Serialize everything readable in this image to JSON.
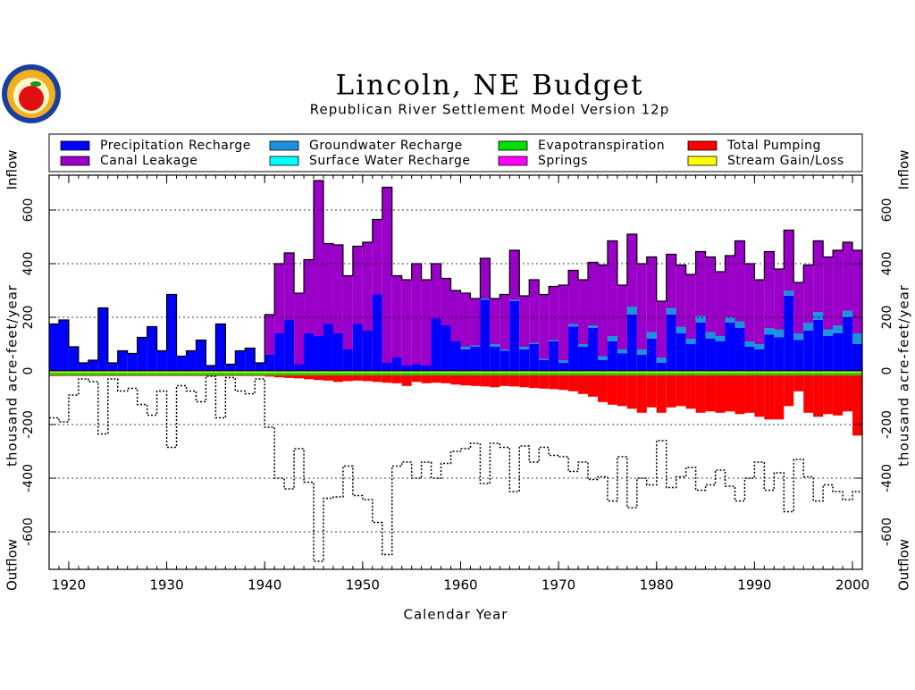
{
  "chart_data": {
    "type": "bar",
    "title": "Lincoln, NE Budget",
    "subtitle": "Republican River Settlement Model Version 12p",
    "xlabel": "Calendar Year",
    "side_labels": {
      "top": "Inflow",
      "middle": "thousand acre-feet/year",
      "bottom": "Outflow"
    },
    "xlim": [
      1918,
      2001
    ],
    "xticks": [
      1920,
      1930,
      1940,
      1950,
      1960,
      1970,
      1980,
      1990,
      2000
    ],
    "ylim": [
      -740,
      730
    ],
    "yticks": [
      -600,
      -400,
      -200,
      0,
      200,
      400,
      600
    ],
    "grid": true,
    "x": [
      1918,
      1919,
      1920,
      1921,
      1922,
      1923,
      1924,
      1925,
      1926,
      1927,
      1928,
      1929,
      1930,
      1931,
      1932,
      1933,
      1934,
      1935,
      1936,
      1937,
      1938,
      1939,
      1940,
      1941,
      1942,
      1943,
      1944,
      1945,
      1946,
      1947,
      1948,
      1949,
      1950,
      1951,
      1952,
      1953,
      1954,
      1955,
      1956,
      1957,
      1958,
      1959,
      1960,
      1961,
      1962,
      1963,
      1964,
      1965,
      1966,
      1967,
      1968,
      1969,
      1970,
      1971,
      1972,
      1973,
      1974,
      1975,
      1976,
      1977,
      1978,
      1979,
      1980,
      1981,
      1982,
      1983,
      1984,
      1985,
      1986,
      1987,
      1988,
      1989,
      1990,
      1991,
      1992,
      1993,
      1994,
      1995,
      1996,
      1997,
      1998,
      1999,
      2000
    ],
    "series": [
      {
        "name": "Precipitation Recharge",
        "color": "#0000ff",
        "values": [
          175,
          190,
          90,
          30,
          40,
          235,
          30,
          75,
          65,
          125,
          165,
          75,
          285,
          55,
          75,
          115,
          20,
          175,
          25,
          75,
          85,
          30,
          60,
          140,
          190,
          25,
          140,
          130,
          175,
          140,
          80,
          175,
          150,
          285,
          30,
          50,
          20,
          25,
          20,
          195,
          170,
          110,
          80,
          90,
          265,
          90,
          75,
          260,
          80,
          100,
          40,
          110,
          30,
          165,
          90,
          160,
          40,
          110,
          65,
          210,
          60,
          120,
          30,
          210,
          140,
          100,
          180,
          120,
          110,
          180,
          160,
          90,
          80,
          135,
          125,
          280,
          115,
          150,
          190,
          130,
          140,
          200,
          100
        ]
      },
      {
        "name": "Groundwater Recharge",
        "color": "#1e90e0",
        "values": [
          0,
          0,
          0,
          0,
          0,
          0,
          0,
          0,
          0,
          0,
          0,
          0,
          0,
          0,
          0,
          0,
          0,
          0,
          0,
          0,
          0,
          0,
          0,
          0,
          0,
          0,
          0,
          0,
          0,
          0,
          0,
          0,
          0,
          0,
          0,
          0,
          0,
          0,
          0,
          0,
          0,
          0,
          10,
          5,
          5,
          10,
          5,
          5,
          10,
          5,
          5,
          5,
          10,
          10,
          10,
          10,
          15,
          20,
          15,
          30,
          20,
          25,
          20,
          25,
          25,
          20,
          25,
          25,
          20,
          20,
          25,
          20,
          20,
          25,
          30,
          20,
          25,
          30,
          30,
          25,
          30,
          25,
          40
        ]
      },
      {
        "name": "Evapotranspiration",
        "color": "#00e000",
        "values": [
          -10,
          -10,
          -10,
          -10,
          -10,
          -10,
          -10,
          -10,
          -10,
          -10,
          -10,
          -10,
          -10,
          -10,
          -10,
          -10,
          -10,
          -10,
          -10,
          -10,
          -10,
          -10,
          -10,
          -10,
          -10,
          -10,
          -10,
          -10,
          -10,
          -10,
          -10,
          -10,
          -10,
          -10,
          -10,
          -10,
          -10,
          -10,
          -10,
          -10,
          -10,
          -10,
          -10,
          -10,
          -10,
          -10,
          -10,
          -10,
          -10,
          -10,
          -10,
          -10,
          -10,
          -10,
          -10,
          -10,
          -10,
          -10,
          -10,
          -10,
          -10,
          -10,
          -10,
          -10,
          -10,
          -10,
          -10,
          -10,
          -10,
          -10,
          -10,
          -10,
          -10,
          -10,
          -10,
          -10,
          -10,
          -10,
          -10,
          -10,
          -10,
          -10,
          -10
        ]
      },
      {
        "name": "Total Pumping",
        "color": "#ff0000",
        "values": [
          -3,
          -3,
          -3,
          -3,
          -3,
          -3,
          -3,
          -3,
          -3,
          -3,
          -3,
          -3,
          -3,
          -3,
          -3,
          -3,
          -3,
          -3,
          -3,
          -3,
          -3,
          -3,
          -5,
          -8,
          -10,
          -12,
          -15,
          -18,
          -20,
          -25,
          -22,
          -20,
          -22,
          -25,
          -28,
          -30,
          -40,
          -25,
          -30,
          -28,
          -30,
          -35,
          -38,
          -40,
          -42,
          -45,
          -40,
          -42,
          -45,
          -48,
          -50,
          -52,
          -55,
          -60,
          -70,
          -80,
          -100,
          -110,
          -115,
          -125,
          -140,
          -120,
          -140,
          -120,
          -115,
          -125,
          -140,
          -135,
          -140,
          -135,
          -145,
          -140,
          -155,
          -165,
          -165,
          -115,
          -60,
          -140,
          -155,
          -145,
          -150,
          -135,
          -225
        ]
      },
      {
        "name": "Canal Leakage",
        "color": "#9a00c8",
        "values": [
          0,
          0,
          0,
          0,
          0,
          0,
          0,
          0,
          0,
          0,
          0,
          0,
          0,
          0,
          0,
          0,
          0,
          0,
          0,
          0,
          0,
          0,
          150,
          260,
          250,
          265,
          275,
          580,
          300,
          330,
          275,
          290,
          330,
          280,
          655,
          305,
          320,
          375,
          320,
          205,
          175,
          190,
          200,
          175,
          150,
          170,
          205,
          185,
          190,
          235,
          240,
          200,
          280,
          200,
          240,
          235,
          340,
          355,
          240,
          270,
          320,
          280,
          210,
          200,
          230,
          240,
          240,
          280,
          240,
          230,
          300,
          290,
          240,
          285,
          225,
          225,
          190,
          215,
          265,
          270,
          280,
          255,
          310
        ]
      },
      {
        "name": "Surface Water Recharge",
        "color": "#00ffff",
        "values": [
          0,
          0,
          0,
          0,
          0,
          0,
          0,
          0,
          0,
          0,
          0,
          0,
          0,
          0,
          0,
          0,
          0,
          0,
          0,
          0,
          0,
          0,
          0,
          0,
          0,
          0,
          0,
          0,
          0,
          0,
          0,
          0,
          0,
          0,
          0,
          0,
          0,
          0,
          0,
          0,
          0,
          0,
          0,
          0,
          0,
          0,
          0,
          0,
          0,
          0,
          0,
          0,
          0,
          0,
          0,
          0,
          0,
          0,
          0,
          0,
          0,
          0,
          0,
          0,
          0,
          0,
          0,
          0,
          0,
          0,
          0,
          0,
          0,
          0,
          0,
          0,
          0,
          0,
          0,
          0,
          0,
          0,
          0
        ]
      },
      {
        "name": "Springs",
        "color": "#ff00ff",
        "values": [
          0,
          0,
          0,
          0,
          0,
          0,
          0,
          0,
          0,
          0,
          0,
          0,
          0,
          0,
          0,
          0,
          0,
          0,
          0,
          0,
          0,
          0,
          0,
          0,
          0,
          0,
          0,
          0,
          0,
          0,
          0,
          0,
          0,
          0,
          0,
          0,
          0,
          0,
          0,
          0,
          0,
          0,
          0,
          0,
          0,
          0,
          0,
          0,
          0,
          0,
          0,
          0,
          0,
          0,
          0,
          0,
          0,
          0,
          0,
          0,
          0,
          0,
          0,
          0,
          0,
          0,
          0,
          0,
          0,
          0,
          0,
          0,
          0,
          0,
          0,
          0,
          0,
          0,
          0,
          0,
          0,
          0,
          0
        ]
      },
      {
        "name": "Stream Gain/Loss",
        "color": "#ffff00",
        "values": [
          -6,
          -6,
          -6,
          -6,
          -6,
          -6,
          -6,
          -6,
          -6,
          -6,
          -6,
          -6,
          -6,
          -6,
          -6,
          -6,
          -6,
          -6,
          -6,
          -6,
          -6,
          -6,
          -6,
          -6,
          -6,
          -6,
          -6,
          -6,
          -6,
          -6,
          -6,
          -6,
          -6,
          -6,
          -6,
          -6,
          -6,
          -6,
          -6,
          -6,
          -6,
          -6,
          -6,
          -6,
          -6,
          -6,
          -6,
          -6,
          -6,
          -6,
          -6,
          -6,
          -6,
          -6,
          -6,
          -6,
          -6,
          -6,
          -6,
          -6,
          -6,
          -6,
          -6,
          -6,
          -6,
          -6,
          -6,
          -6,
          -6,
          -6,
          -6,
          -6,
          -6,
          -6,
          -6,
          -6,
          -6,
          -6,
          -6,
          -6,
          -6,
          -6,
          -6
        ]
      }
    ]
  }
}
